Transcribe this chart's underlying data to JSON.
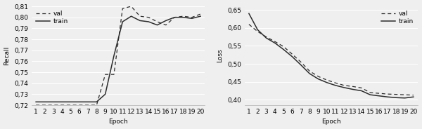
{
  "epochs": [
    1,
    2,
    3,
    4,
    5,
    6,
    7,
    8,
    9,
    10,
    11,
    12,
    13,
    14,
    15,
    16,
    17,
    18,
    19,
    20
  ],
  "recall_val": [
    0.72,
    0.72,
    0.72,
    0.72,
    0.72,
    0.72,
    0.72,
    0.72,
    0.748,
    0.748,
    0.808,
    0.81,
    0.801,
    0.8,
    0.796,
    0.793,
    0.8,
    0.801,
    0.8,
    0.803
  ],
  "recall_train": [
    0.723,
    0.723,
    0.723,
    0.723,
    0.723,
    0.723,
    0.723,
    0.723,
    0.73,
    0.765,
    0.796,
    0.801,
    0.797,
    0.796,
    0.793,
    0.797,
    0.8,
    0.8,
    0.799,
    0.801
  ],
  "loss_val": [
    0.61,
    0.59,
    0.575,
    0.562,
    0.548,
    0.527,
    0.505,
    0.48,
    0.465,
    0.455,
    0.447,
    0.44,
    0.437,
    0.433,
    0.42,
    0.418,
    0.416,
    0.415,
    0.414,
    0.413
  ],
  "loss_train": [
    0.64,
    0.595,
    0.572,
    0.558,
    0.54,
    0.52,
    0.497,
    0.473,
    0.458,
    0.448,
    0.44,
    0.434,
    0.429,
    0.425,
    0.414,
    0.411,
    0.408,
    0.406,
    0.405,
    0.408
  ],
  "recall_ylim": [
    0.72,
    0.81
  ],
  "recall_yticks": [
    0.72,
    0.73,
    0.74,
    0.75,
    0.76,
    0.77,
    0.78,
    0.79,
    0.8,
    0.81
  ],
  "loss_ylim": [
    0.385,
    0.66
  ],
  "loss_yticks": [
    0.4,
    0.45,
    0.5,
    0.55,
    0.6,
    0.65
  ],
  "line_color": "#2c2c2c",
  "bg_color": "#efefef",
  "grid_color": "#ffffff",
  "fontsize": 6.5
}
